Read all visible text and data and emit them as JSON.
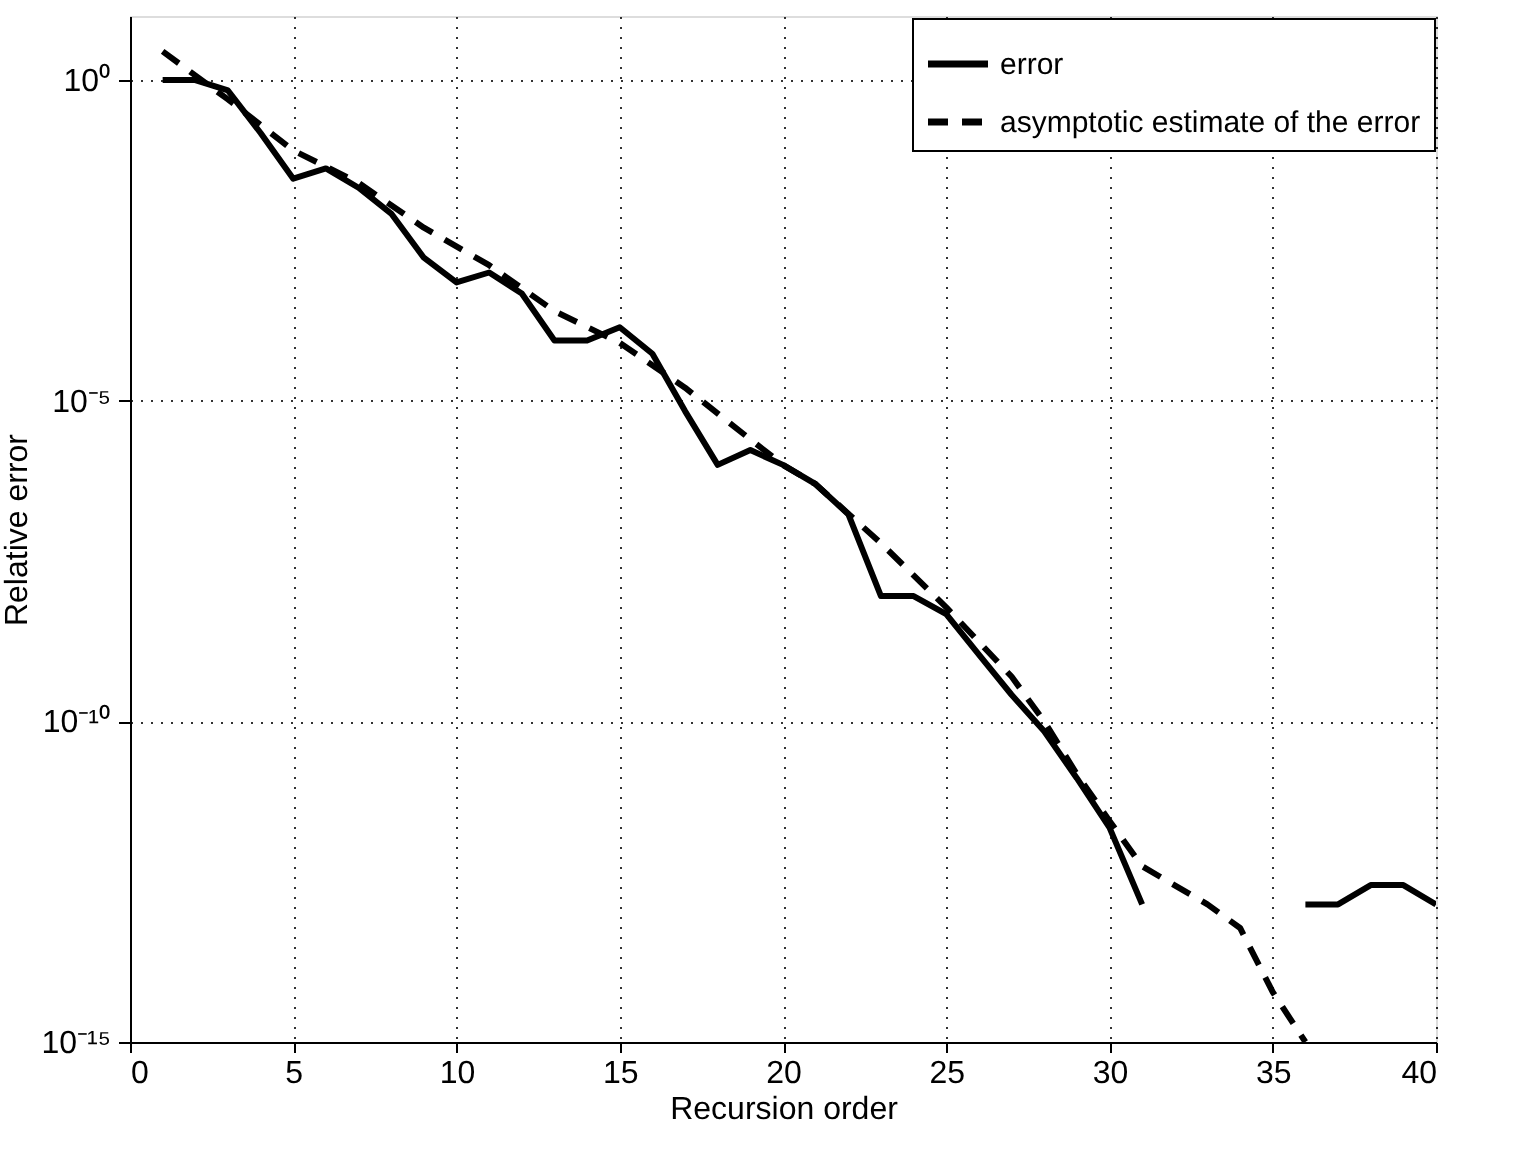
{
  "chart_data": {
    "type": "line",
    "xlabel": "Recursion order",
    "ylabel": "Relative error",
    "xlim": [
      0,
      40
    ],
    "xticks": [
      0,
      5,
      10,
      15,
      20,
      25,
      30,
      35,
      40
    ],
    "ylim": [
      1e-15,
      10
    ],
    "yticks": [
      {
        "value": 1,
        "label": "10⁰"
      },
      {
        "value": 1e-05,
        "label": "10⁻⁵"
      },
      {
        "value": 1e-10,
        "label": "10⁻¹⁰"
      },
      {
        "value": 1e-15,
        "label": "10⁻¹⁵"
      }
    ],
    "log": "y",
    "grid": true,
    "legend": "top right",
    "series": [
      {
        "name": "error",
        "color": "#000000",
        "line_style": "solid",
        "x": [
          1,
          2,
          3,
          4,
          5,
          6,
          7,
          8,
          9,
          10,
          11,
          12,
          13,
          14,
          15,
          16,
          17,
          18,
          19,
          20,
          21,
          22,
          23,
          24,
          25,
          26,
          27,
          28,
          29,
          30,
          31,
          32,
          33,
          34,
          35,
          36,
          37,
          38,
          39,
          40
        ],
        "values": [
          1,
          1,
          0.69,
          0.15,
          0.029,
          0.042,
          0.021,
          0.0083,
          0.0017,
          0.0007,
          0.001,
          0.00047,
          8.7e-05,
          8.7e-05,
          0.00014,
          5.4e-05,
          6.9e-06,
          1e-06,
          1.7e-06,
          1e-06,
          5e-07,
          1.7e-07,
          9e-09,
          9e-09,
          4.7e-09,
          1.1e-09,
          2.6e-10,
          7e-11,
          1.3e-11,
          2.2e-12,
          1.4e-13,
          null,
          null,
          null,
          null,
          1.4e-13,
          1.4e-13,
          2.8e-13,
          2.8e-13,
          1.4e-13
        ]
      },
      {
        "name": "asymptotic estimate of the error",
        "color": "#000000",
        "line_style": "dashed",
        "x": [
          1,
          3,
          5,
          7,
          9,
          11,
          13,
          15,
          17,
          19,
          20,
          21,
          23,
          25,
          27,
          28,
          29,
          30,
          31,
          33,
          34,
          35,
          36
        ],
        "values": [
          2.8,
          0.5,
          0.08,
          0.025,
          0.005,
          0.0013,
          0.00025,
          8e-05,
          1.6e-05,
          2.5e-06,
          1e-06,
          5e-07,
          6e-08,
          6e-09,
          5e-10,
          1e-10,
          1.5e-11,
          2.8e-12,
          5.5e-13,
          1.4e-13,
          6e-14,
          6e-15,
          1e-15
        ]
      }
    ]
  }
}
